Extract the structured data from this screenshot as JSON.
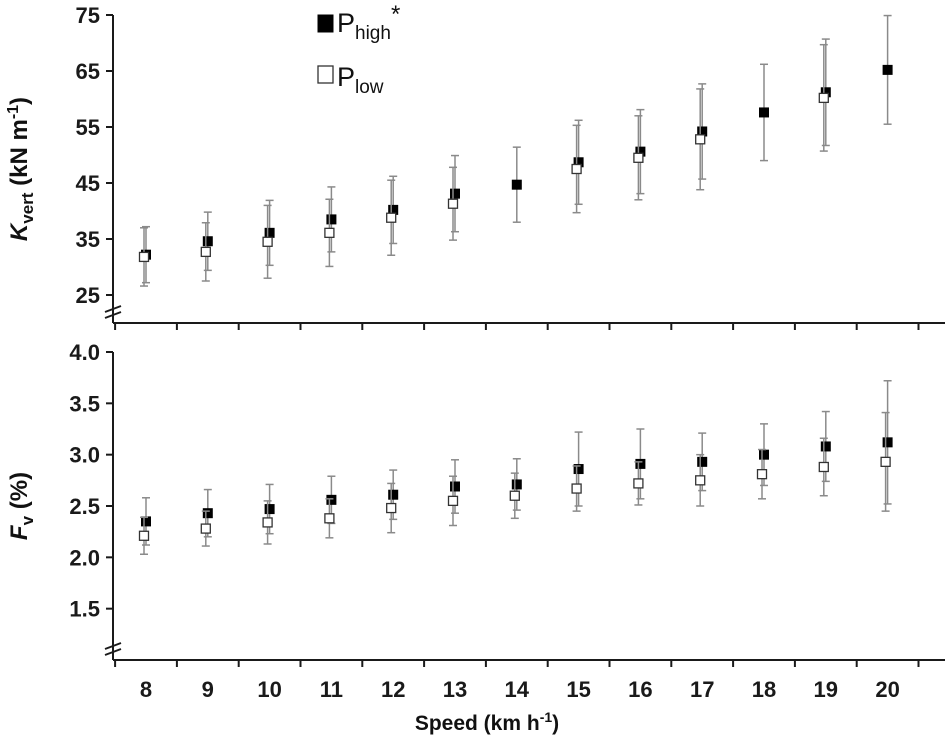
{
  "chart_data": [
    {
      "type": "scatter",
      "panel": "top",
      "ylabel": {
        "main": "K",
        "sub": "vert",
        "unit": "(kN m",
        "sup": "-1",
        "close": ")"
      },
      "ylim": [
        20,
        75
      ],
      "yticks": [
        25,
        35,
        45,
        55,
        65,
        75
      ],
      "axis_break": true,
      "x": [
        8,
        9,
        10,
        11,
        12,
        13,
        14,
        15,
        16,
        17,
        18,
        19,
        20
      ],
      "series": [
        {
          "key": "high",
          "marker": "filled-square",
          "values": [
            32.2,
            34.6,
            36.1,
            38.5,
            40.2,
            43.1,
            44.7,
            48.7,
            50.6,
            54.2,
            57.6,
            61.2,
            65.2
          ],
          "error": [
            5.0,
            5.2,
            5.8,
            5.8,
            6.0,
            6.8,
            6.7,
            7.5,
            7.5,
            8.5,
            8.6,
            9.5,
            9.7
          ]
        },
        {
          "key": "low",
          "marker": "open-square",
          "values": [
            31.8,
            32.7,
            34.5,
            36.1,
            38.8,
            41.3,
            null,
            47.5,
            49.5,
            52.8,
            null,
            60.2,
            null
          ],
          "error": [
            5.2,
            5.2,
            6.5,
            6.0,
            6.7,
            6.5,
            null,
            7.8,
            7.5,
            9.0,
            null,
            9.5,
            null
          ]
        }
      ],
      "legend": {
        "placement": "top-left",
        "entries": [
          {
            "key": "high",
            "main": "P",
            "sub": "high",
            "suffix": "*"
          },
          {
            "key": "low",
            "main": "P",
            "sub": "low",
            "suffix": ""
          }
        ]
      }
    },
    {
      "type": "scatter",
      "panel": "bottom",
      "ylabel": {
        "main": "F",
        "sub": "v",
        "unit": "(%)"
      },
      "ylim": [
        1.0,
        4.0
      ],
      "yticks": [
        "1.5",
        "2.0",
        "2.5",
        "3.0",
        "3.5",
        "4.0"
      ],
      "axis_break": true,
      "x": [
        8,
        9,
        10,
        11,
        12,
        13,
        14,
        15,
        16,
        17,
        18,
        19,
        20
      ],
      "xticks": [
        "8",
        "9",
        "10",
        "11",
        "12",
        "13",
        "14",
        "15",
        "16",
        "17",
        "18",
        "19",
        "20"
      ],
      "xlabel": {
        "main": "Speed (km h",
        "sup": "-1",
        "close": ")"
      },
      "series": [
        {
          "key": "high",
          "marker": "filled-square",
          "values": [
            2.35,
            2.43,
            2.47,
            2.56,
            2.61,
            2.69,
            2.71,
            2.86,
            2.91,
            2.93,
            3.0,
            3.08,
            3.12
          ],
          "error": [
            0.23,
            0.23,
            0.24,
            0.23,
            0.24,
            0.26,
            0.25,
            0.36,
            0.34,
            0.28,
            0.3,
            0.34,
            0.6
          ]
        },
        {
          "key": "low",
          "marker": "open-square",
          "values": [
            2.21,
            2.28,
            2.34,
            2.38,
            2.48,
            2.55,
            2.6,
            2.67,
            2.72,
            2.75,
            2.81,
            2.88,
            2.93
          ],
          "error": [
            0.18,
            0.17,
            0.21,
            0.19,
            0.24,
            0.24,
            0.22,
            0.22,
            0.21,
            0.25,
            0.24,
            0.28,
            0.48
          ]
        }
      ]
    }
  ]
}
